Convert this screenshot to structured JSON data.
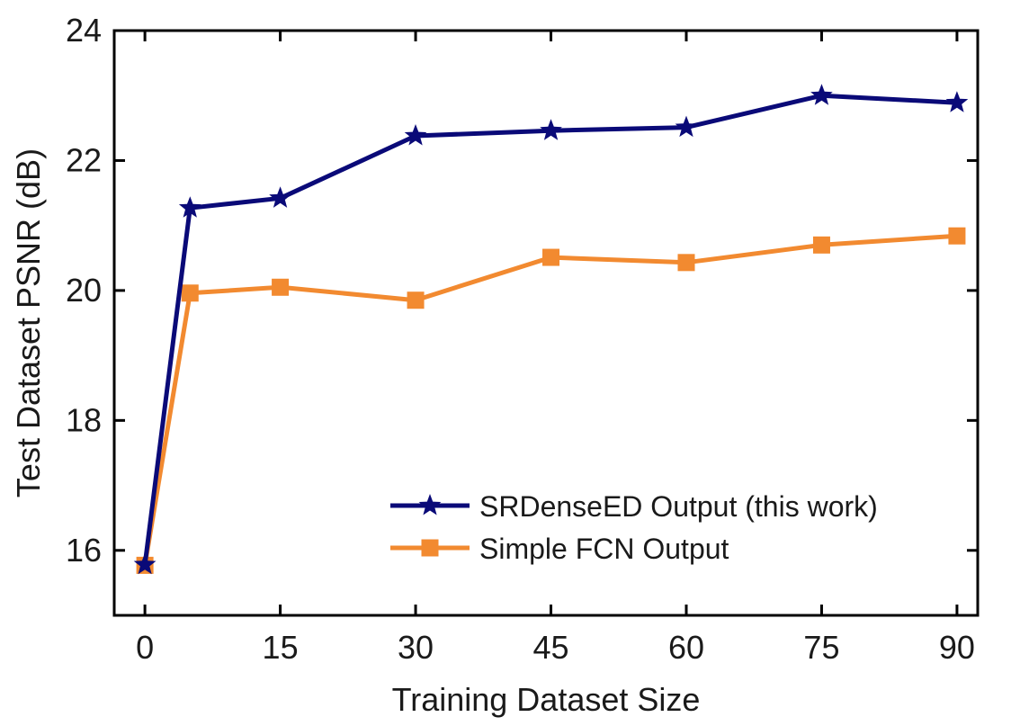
{
  "chart_data": {
    "type": "line",
    "title": "",
    "xlabel": "Training Dataset Size",
    "ylabel": "Test Dataset PSNR (dB)",
    "xlim": [
      -3.4,
      92.3
    ],
    "ylim": [
      15,
      24
    ],
    "xticks": [
      0,
      15,
      30,
      45,
      60,
      75,
      90
    ],
    "yticks": [
      16,
      18,
      20,
      22,
      24
    ],
    "grid": false,
    "legend_position": "lower-right",
    "series": [
      {
        "name": "SRDenseED Output (this work)",
        "color": "#0a0a78",
        "marker": "star",
        "x": [
          0,
          5,
          15,
          30,
          45,
          60,
          75,
          90
        ],
        "y": [
          15.78,
          21.27,
          21.42,
          22.38,
          22.46,
          22.51,
          23.0,
          22.89
        ]
      },
      {
        "name": "Simple FCN Output",
        "color": "#f28a30",
        "marker": "square",
        "x": [
          0,
          5,
          15,
          30,
          45,
          60,
          75,
          90
        ],
        "y": [
          15.77,
          19.96,
          20.05,
          19.85,
          20.51,
          20.43,
          20.7,
          20.84
        ]
      }
    ]
  }
}
